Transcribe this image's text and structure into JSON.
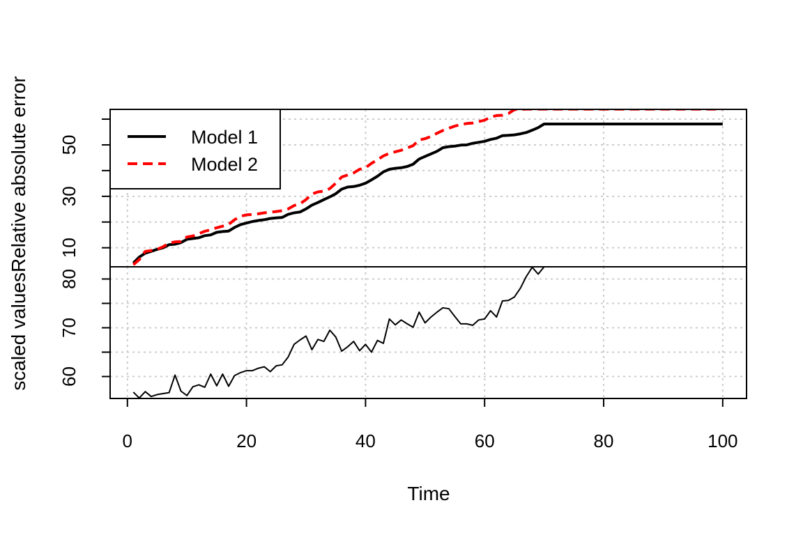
{
  "chart_data": {
    "type": "line",
    "x_axis": {
      "label": "Time",
      "range": [
        -2.9,
        104
      ],
      "ticks": [
        0,
        20,
        40,
        60,
        80,
        100
      ],
      "tick_labels": [
        "0",
        "20",
        "40",
        "60",
        "80",
        "100"
      ]
    },
    "y_axis": {
      "label": "scaled values",
      "combined_label": "scaled valuesRelative absolute error"
    },
    "grid": true,
    "panels": [
      {
        "id": "relative-error",
        "ylabel": "Relative absolute error",
        "ylim": [
          2.6,
          63.8
        ],
        "ticks": [
          10,
          20,
          30,
          40,
          50,
          60
        ],
        "tick_labels": [
          "10",
          "30",
          "50"
        ],
        "legend": {
          "position": "top-left",
          "entries": [
            "Model 1",
            "Model 2"
          ]
        },
        "series": [
          {
            "name": "Model 1",
            "color": "#000000",
            "dash": "solid",
            "x": [
              1,
              2,
              3,
              4,
              5,
              6,
              7,
              8,
              9,
              10,
              11,
              12,
              13,
              14,
              15,
              16,
              17,
              18,
              19,
              20,
              21,
              22,
              23,
              24,
              25,
              26,
              27,
              28,
              29,
              30,
              31,
              32,
              33,
              34,
              35,
              36,
              37,
              38,
              39,
              40,
              41,
              42,
              43,
              44,
              45,
              46,
              47,
              48,
              49,
              50,
              51,
              52,
              53,
              54,
              55,
              56,
              57,
              58,
              59,
              60,
              61,
              62,
              63,
              64,
              65,
              66,
              67,
              68,
              69,
              70,
              100
            ],
            "y": [
              4.1,
              6.4,
              7.9,
              8.6,
              9.4,
              10.0,
              11.2,
              11.4,
              12.0,
              13.3,
              13.6,
              13.9,
              14.7,
              15.0,
              16.0,
              16.3,
              16.5,
              17.9,
              19.0,
              19.6,
              20.2,
              20.6,
              20.9,
              21.4,
              21.6,
              21.8,
              23.0,
              23.6,
              23.9,
              25.1,
              26.6,
              27.6,
              28.7,
              29.8,
              31.0,
              32.8,
              33.6,
              33.8,
              34.3,
              35.1,
              36.4,
              37.8,
              39.5,
              40.5,
              40.9,
              41.1,
              41.6,
              42.5,
              44.5,
              45.5,
              46.5,
              47.5,
              48.9,
              49.3,
              49.5,
              49.9,
              50.0,
              50.6,
              51.0,
              51.4,
              52.1,
              52.6,
              53.6,
              53.7,
              53.9,
              54.3,
              54.8,
              55.7,
              56.7,
              58.1,
              58.1
            ]
          },
          {
            "name": "Model 2",
            "color": "#ff0000",
            "dash": "dashed",
            "x": [
              1,
              2,
              3,
              4,
              5,
              6,
              7,
              8,
              9,
              10,
              11,
              12,
              13,
              14,
              15,
              16,
              17,
              18,
              19,
              20,
              21,
              22,
              23,
              24,
              25,
              26,
              27,
              28,
              29,
              30,
              31,
              32,
              33,
              34,
              35,
              36,
              37,
              38,
              39,
              40,
              41,
              42,
              43,
              44,
              45,
              46,
              47,
              48,
              49,
              50,
              51,
              52,
              53,
              54,
              55,
              56,
              57,
              58,
              59,
              60,
              61,
              62,
              63,
              64,
              65,
              66,
              67,
              68,
              69,
              70,
              100
            ],
            "y": [
              3.4,
              5.4,
              8.6,
              8.9,
              9.4,
              10.4,
              11.8,
              12.3,
              12.4,
              14.2,
              14.6,
              15.5,
              16.4,
              17.0,
              17.8,
              18.4,
              19.1,
              20.9,
              22.2,
              22.8,
              22.9,
              23.2,
              23.6,
              23.8,
              24.1,
              24.4,
              25.1,
              26.4,
              27.1,
              28.7,
              30.9,
              31.7,
              32.0,
              33.0,
              35.1,
              37.5,
              38.3,
              39.1,
              40.5,
              41.1,
              42.8,
              44.2,
              45.7,
              46.7,
              47.3,
              47.9,
              48.8,
              49.7,
              51.9,
              52.4,
              53.3,
              54.5,
              55.6,
              56.5,
              57.3,
              57.9,
              58.3,
              58.5,
              59.0,
              59.6,
              60.8,
              61.4,
              61.5,
              62.2,
              63.7,
              63.8,
              63.9,
              63.9,
              63.9,
              63.9,
              63.9
            ]
          }
        ]
      },
      {
        "id": "scaled-values",
        "ylabel": "scaled values",
        "ylim": [
          55.5,
          82.5
        ],
        "ticks": [
          60,
          65,
          70,
          75,
          80
        ],
        "tick_labels": [
          "60",
          "70",
          "80"
        ],
        "series": [
          {
            "name": "",
            "color": "#000000",
            "dash": "solid",
            "x": [
              1,
              2,
              3,
              4,
              5,
              6,
              7,
              8,
              9,
              10,
              11,
              12,
              13,
              14,
              15,
              16,
              17,
              18,
              19,
              20,
              21,
              22,
              23,
              24,
              25,
              26,
              27,
              28,
              29,
              30,
              31,
              32,
              33,
              34,
              35,
              36,
              37,
              38,
              39,
              40,
              41,
              42,
              43,
              44,
              45,
              46,
              47,
              48,
              49,
              50,
              51,
              52,
              53,
              54,
              55,
              56,
              57,
              58,
              59,
              60,
              61,
              62,
              63,
              64,
              65,
              66,
              67,
              68,
              69,
              70
            ],
            "y": [
              56.8,
              55.6,
              56.9,
              55.9,
              56.3,
              56.5,
              56.7,
              60.3,
              57.0,
              56.1,
              57.9,
              58.3,
              57.8,
              60.5,
              58.1,
              60.5,
              58.0,
              60.2,
              60.8,
              61.2,
              61.2,
              61.7,
              62.0,
              61.0,
              62.2,
              62.4,
              64.0,
              66.6,
              67.5,
              68.3,
              65.5,
              67.6,
              67.2,
              69.5,
              68.1,
              65.2,
              66.1,
              67.2,
              65.3,
              66.6,
              65.0,
              67.4,
              66.8,
              71.8,
              70.6,
              71.6,
              70.8,
              70.1,
              73.2,
              71.0,
              72.2,
              73.2,
              74.1,
              73.9,
              72.3,
              70.8,
              70.8,
              70.5,
              71.6,
              71.8,
              73.5,
              72.2,
              75.5,
              75.6,
              76.3,
              78.1,
              80.5,
              82.4,
              81.0,
              82.5
            ]
          }
        ]
      }
    ]
  }
}
